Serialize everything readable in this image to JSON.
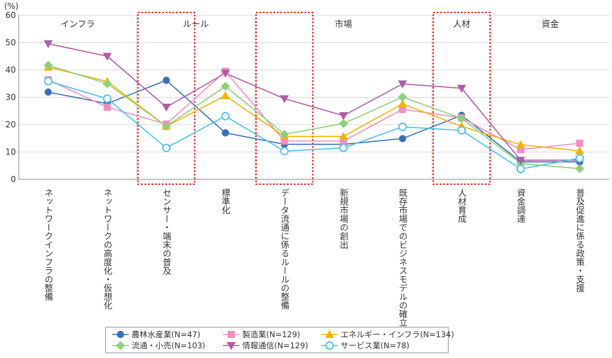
{
  "chart_data": {
    "type": "line",
    "ylabel": "(%)",
    "ylim": [
      0,
      60
    ],
    "yticks": [
      0,
      10,
      20,
      30,
      40,
      50,
      60
    ],
    "categories": [
      "ネットワークインフラの整備",
      "ネットワークの高度化・仮想化",
      "センサー・端末の普及",
      "標準化",
      "データ流通に係るルールの整備",
      "新規市場の創出",
      "既存市場でのビジネスモデルの確立",
      "人材育成",
      "資金調達",
      "普及促進に係る政策・支援"
    ],
    "groups": [
      {
        "label": "インフラ",
        "start": 0,
        "end": 2
      },
      {
        "label": "ルール",
        "start": 2,
        "end": 4
      },
      {
        "label": "市場",
        "start": 4,
        "end": 7
      },
      {
        "label": "人材",
        "start": 7,
        "end": 8
      },
      {
        "label": "資金",
        "start": 8,
        "end": 10
      }
    ],
    "highlighted": [
      2,
      4,
      7
    ],
    "series": [
      {
        "name": "農林水産業(N=47)",
        "color": "#3b6fb6",
        "marker": "circle",
        "values": [
          31.9,
          27.7,
          36.2,
          17.0,
          12.8,
          12.8,
          14.9,
          23.4,
          6.4,
          6.4
        ]
      },
      {
        "name": "製造業(N=129)",
        "color": "#ef8fbf",
        "marker": "square",
        "values": [
          36.4,
          26.4,
          20.2,
          39.5,
          14.0,
          14.0,
          25.6,
          22.5,
          10.9,
          13.2
        ]
      },
      {
        "name": "エネルギー・インフラ(N=134)",
        "color": "#f2b400",
        "marker": "triangle",
        "values": [
          41.0,
          35.8,
          19.4,
          30.6,
          15.7,
          15.7,
          27.6,
          19.4,
          12.7,
          10.4
        ]
      },
      {
        "name": "流通・小売(N=103)",
        "color": "#8fcf7a",
        "marker": "diamond",
        "values": [
          41.7,
          35.0,
          19.4,
          34.0,
          16.5,
          20.4,
          30.1,
          22.3,
          5.8,
          3.9
        ]
      },
      {
        "name": "情報通信(N=129)",
        "color": "#b05ca8",
        "marker": "triangle-down",
        "values": [
          49.6,
          45.0,
          26.4,
          38.8,
          29.5,
          23.3,
          34.9,
          33.3,
          7.0,
          7.0
        ]
      },
      {
        "name": "サービス業(N=78)",
        "color": "#4fbfe6",
        "marker": "open-circle",
        "values": [
          35.9,
          29.5,
          11.5,
          23.1,
          10.3,
          11.5,
          19.2,
          17.9,
          3.8,
          7.7
        ]
      }
    ]
  }
}
